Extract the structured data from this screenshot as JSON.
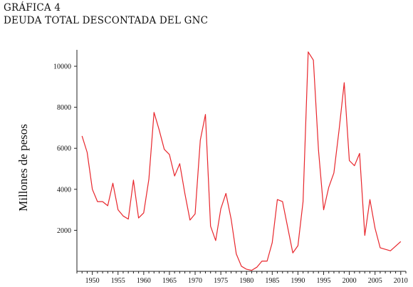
{
  "figure": {
    "label": "GRÁFICA 4",
    "title": "DEUDA TOTAL DESCONTADA DEL GNC"
  },
  "chart_data": {
    "type": "line",
    "title": "DEUDA TOTAL DESCONTADA DEL GNC",
    "xlabel": "",
    "ylabel": "Millones de pesos",
    "xlim": [
      1947,
      2011
    ],
    "ylim": [
      0,
      10800
    ],
    "x_ticks": [
      1950,
      1955,
      1960,
      1965,
      1970,
      1975,
      1980,
      1985,
      1990,
      1995,
      2000,
      2005,
      2010
    ],
    "y_ticks": [
      2000,
      4000,
      6000,
      8000,
      10000
    ],
    "grid": false,
    "line_color": "#e8262c",
    "series": [
      {
        "x": [
          1948,
          1949,
          1950,
          1951,
          1952,
          1953,
          1954,
          1955,
          1956,
          1957,
          1958,
          1959,
          1960,
          1961,
          1962,
          1963,
          1964,
          1965,
          1966,
          1967,
          1968,
          1969,
          1970,
          1971,
          1972,
          1973,
          1974,
          1975,
          1976,
          1977,
          1978,
          1979,
          1980,
          1981,
          1982,
          1983,
          1984,
          1985,
          1986,
          1987,
          1988,
          1989,
          1990,
          1991,
          1992,
          1993,
          1994,
          1995,
          1996,
          1997,
          1998,
          1999,
          2000,
          2001,
          2002,
          2003,
          2004,
          2005,
          2006,
          2008,
          2010
        ],
        "values": [
          6600,
          5800,
          4000,
          3400,
          3400,
          3200,
          4300,
          3000,
          2700,
          2550,
          4450,
          2600,
          2850,
          4500,
          7750,
          6900,
          5950,
          5700,
          4650,
          5250,
          3800,
          2500,
          2800,
          6400,
          7650,
          2200,
          1500,
          3050,
          3800,
          2550,
          850,
          250,
          100,
          50,
          200,
          500,
          500,
          1400,
          3500,
          3400,
          2150,
          900,
          1250,
          3400,
          10700,
          10300,
          5900,
          3000,
          4100,
          4800,
          6900,
          9200,
          5400,
          5150,
          5750,
          1750,
          3500,
          2100,
          1150,
          1000,
          1450
        ]
      }
    ]
  }
}
